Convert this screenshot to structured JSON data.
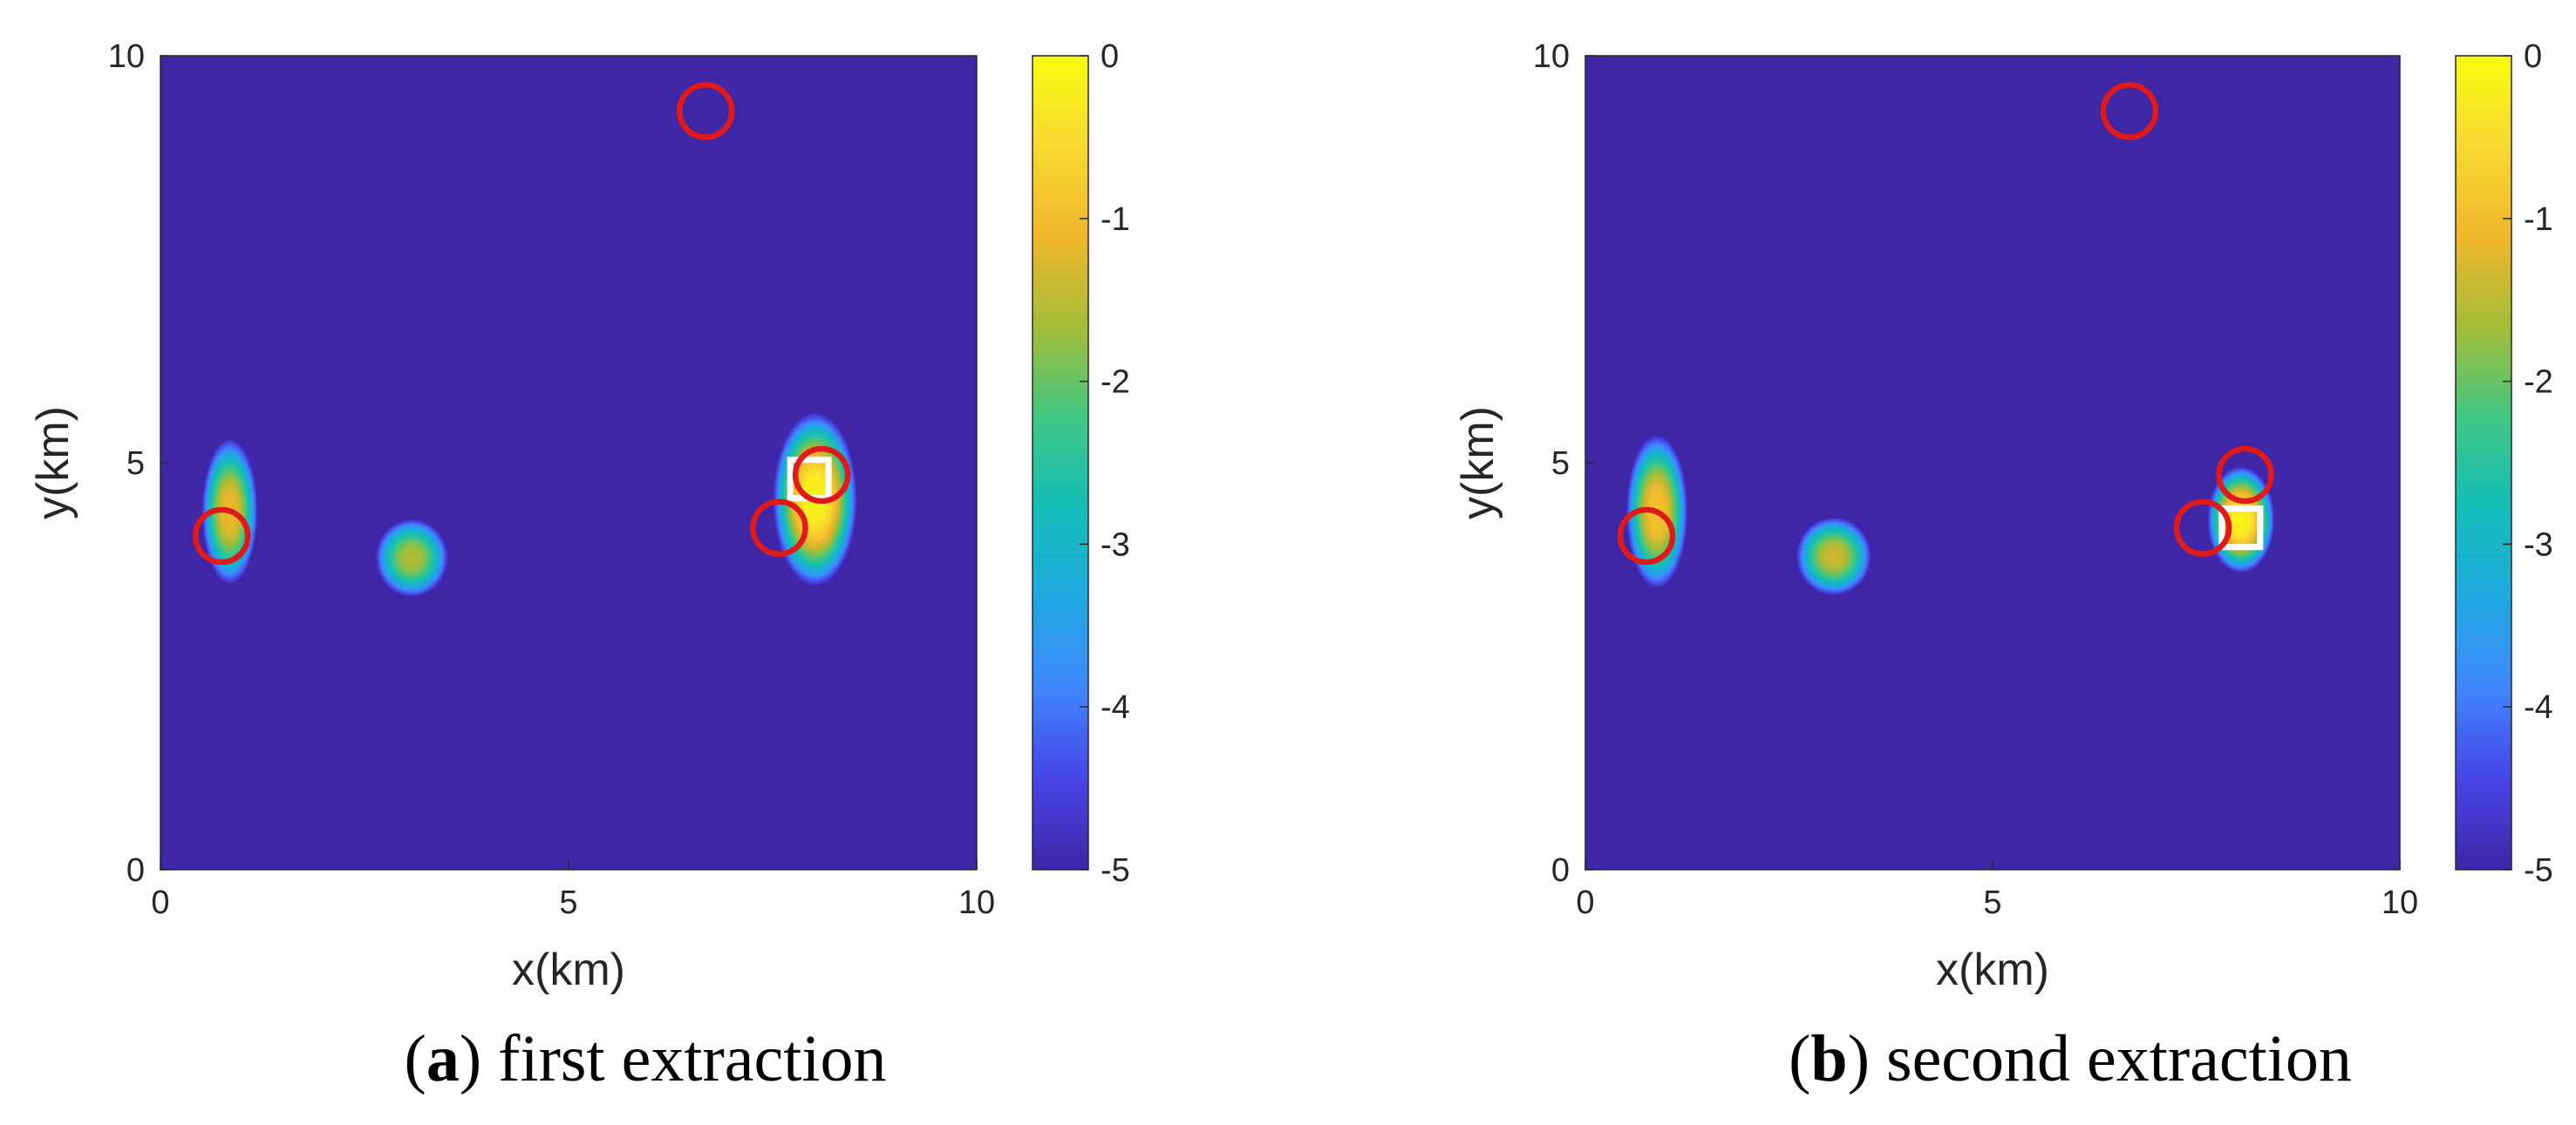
{
  "colors": {
    "background": "#3f26a6",
    "target_marker": "#e01a1a",
    "estimate_marker": "#ffffff",
    "colormap": [
      "#3e26a8",
      "#4745e6",
      "#3f86fe",
      "#1fa9e1",
      "#12bdb8",
      "#40c783",
      "#a3bd36",
      "#f1b62c",
      "#f8d930",
      "#f9fb0e"
    ]
  },
  "chart_data": [
    {
      "type": "heatmap",
      "panel_letter": "a",
      "caption": "first extraction",
      "xlabel": "x(km)",
      "ylabel": "y(km)",
      "xlim": [
        0,
        10
      ],
      "ylim": [
        0,
        10
      ],
      "xticks": [
        "0",
        "5",
        "10"
      ],
      "yticks": [
        "0",
        "5",
        "10"
      ],
      "colorbar": {
        "range": [
          -5,
          0
        ],
        "ticks": [
          "0",
          "-1",
          "-2",
          "-3",
          "-4",
          "-5"
        ],
        "tick_values": [
          0,
          -1,
          -2,
          -3,
          -4,
          -5
        ]
      },
      "blobs": [
        {
          "x": 0.85,
          "y": 4.4,
          "sx": 0.2,
          "sy": 0.52,
          "peak": -1.0
        },
        {
          "x": 3.08,
          "y": 3.83,
          "sx": 0.26,
          "sy": 0.28,
          "peak": -1.5
        },
        {
          "x": 8.02,
          "y": 4.55,
          "sx": 0.3,
          "sy": 0.62,
          "peak": 0.0
        }
      ],
      "targets": [
        {
          "x": 0.75,
          "y": 4.1
        },
        {
          "x": 6.68,
          "y": 9.32
        },
        {
          "x": 7.58,
          "y": 4.2
        },
        {
          "x": 8.1,
          "y": 4.85
        }
      ],
      "estimate": {
        "x": 7.95,
        "y": 4.8
      }
    },
    {
      "type": "heatmap",
      "panel_letter": "b",
      "caption": "second extraction",
      "xlabel": "x(km)",
      "ylabel": "y(km)",
      "xlim": [
        0,
        10
      ],
      "ylim": [
        0,
        10
      ],
      "xticks": [
        "0",
        "5",
        "10"
      ],
      "yticks": [
        "0",
        "5",
        "10"
      ],
      "colorbar": {
        "range": [
          -5,
          0
        ],
        "ticks": [
          "0",
          "-1",
          "-2",
          "-3",
          "-4",
          "-5"
        ],
        "tick_values": [
          0,
          -1,
          -2,
          -3,
          -4,
          -5
        ]
      },
      "blobs": [
        {
          "x": 0.88,
          "y": 4.4,
          "sx": 0.22,
          "sy": 0.55,
          "peak": -0.8
        },
        {
          "x": 3.05,
          "y": 3.85,
          "sx": 0.27,
          "sy": 0.28,
          "peak": -1.3
        },
        {
          "x": 8.05,
          "y": 4.3,
          "sx": 0.24,
          "sy": 0.38,
          "peak": 0.0
        }
      ],
      "targets": [
        {
          "x": 0.75,
          "y": 4.1
        },
        {
          "x": 6.68,
          "y": 9.32
        },
        {
          "x": 7.58,
          "y": 4.2
        },
        {
          "x": 8.1,
          "y": 4.85
        }
      ],
      "estimate": {
        "x": 8.05,
        "y": 4.2
      }
    }
  ]
}
